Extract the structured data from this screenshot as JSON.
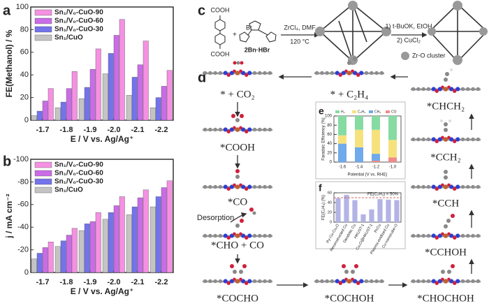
{
  "chart_data": [
    {
      "type": "bar",
      "label": "a",
      "x_label": "E / V vs. Ag/Ag⁺",
      "y_label": "FE(Methanol) / %",
      "categories": [
        "-1.7",
        "-1.8",
        "-1.9",
        "-2.0",
        "-2.1",
        "-2.2"
      ],
      "series": [
        {
          "name": "Sn₁/V₀-CuO-90",
          "color": "#f590e2",
          "values": [
            28,
            43,
            63,
            89,
            70,
            44
          ]
        },
        {
          "name": "Sn₁/V₀-CuO-60",
          "color": "#c96ce6",
          "values": [
            17,
            28,
            45,
            75,
            49,
            30
          ]
        },
        {
          "name": "Sn₁/V₀-CuO-30",
          "color": "#7373ec",
          "values": [
            8,
            16,
            29,
            59,
            38,
            20
          ]
        },
        {
          "name": "Sn₁/CuO",
          "color": "#c4c4c4",
          "values": [
            4,
            11,
            19,
            41,
            22,
            11
          ]
        }
      ],
      "ylim": [
        0,
        100
      ],
      "yticks": [
        0,
        20,
        40,
        60,
        80,
        100
      ],
      "legend": "upper left"
    },
    {
      "type": "bar",
      "label": "b",
      "x_label": "E / V vs. Ag/Ag⁺",
      "y_label": "j / mA cm⁻²",
      "categories": [
        "-1.7",
        "-1.8",
        "-1.9",
        "-2.0",
        "-2.1",
        "-2.2"
      ],
      "series": [
        {
          "name": "Sn₁/V₀-CuO-90",
          "color": "#f590e2",
          "values": [
            -27,
            -39,
            -53,
            -67,
            -73,
            -81
          ]
        },
        {
          "name": "Sn₁/V₀-CuO-60",
          "color": "#c96ce6",
          "values": [
            -22,
            -33,
            -45,
            -59,
            -66,
            -75
          ]
        },
        {
          "name": "Sn₁/V₀-CuO-30",
          "color": "#7373ec",
          "values": [
            -17,
            -28,
            -43,
            -53,
            -58,
            -67
          ]
        },
        {
          "name": "Sn₁/CuO",
          "color": "#c4c4c4",
          "values": [
            -12,
            -23,
            -37,
            -47,
            -51,
            -58
          ]
        }
      ],
      "ylim": [
        0,
        -100
      ],
      "yticks": [
        0,
        -20,
        -40,
        -60,
        -80,
        -100
      ],
      "legend": "upper left"
    },
    {
      "type": "bar",
      "stacked": true,
      "label": "e",
      "x_label": "Potential (V vs. RHE)",
      "y_label": "Faradaic Efficiency (%)",
      "categories": [
        "-1.6",
        "-1.4",
        "-1.2",
        "-1.0"
      ],
      "series": [
        {
          "name": "H₂",
          "color": "#86dba3",
          "values": [
            42,
            30,
            30,
            52
          ]
        },
        {
          "name": "C₂H₄",
          "color": "#f6e27c",
          "values": [
            18,
            38,
            52,
            38
          ]
        },
        {
          "name": "CH₄",
          "color": "#70aaea",
          "values": [
            40,
            32,
            15,
            0
          ]
        },
        {
          "name": "CO",
          "color": "#f08a8a",
          "values": [
            0,
            0,
            3,
            10
          ]
        }
      ],
      "ylim": [
        0,
        100
      ],
      "yticks": [
        0,
        20,
        40,
        60,
        80,
        100
      ],
      "legend": "top"
    },
    {
      "type": "bar",
      "label": "f",
      "y_label": "FE(C₂H₄) (%)",
      "categories": [
        "Py-Cu-Cu₂O",
        "Reconstructed Cu",
        "Dendritic Cu",
        "HKUST-1",
        "Cu₂O@HKUST-1",
        "PcCu",
        "Plasma-oxidized Cu",
        "Cu-nanocube-O"
      ],
      "values": [
        49,
        56,
        45,
        16,
        26,
        47,
        46,
        45
      ],
      "color": "#b3b3e6",
      "ylim": [
        0,
        60
      ],
      "yticks": [
        0,
        20,
        40,
        60
      ],
      "reference_line": {
        "value": 50,
        "label": "FE(C₂H₄) = 50%",
        "color": "#c0392b"
      }
    }
  ],
  "scheme": {
    "label": "c",
    "acid": "COOH",
    "ligand": "2Bn·HBr",
    "bromide": "Br",
    "step1_reagents": "ZrCl₄, DMF",
    "step1_temp": "120 °C",
    "step2_a": "1) t-BuOK, EtOH",
    "step2_b": "2) CuCl₂",
    "cluster": "Zr-O cluster"
  },
  "mechanism": {
    "label": "d",
    "steps": [
      "* + CO₂",
      "*COOH",
      "*CO",
      "*CHO + CO",
      "*COCHO",
      "*COCHOH",
      "*CHOCHOH",
      "*CCHOH",
      "*CCH",
      "*CCH₂",
      "*CHCH₂",
      "* + C₂H₄"
    ],
    "desorption": "Desorption"
  }
}
